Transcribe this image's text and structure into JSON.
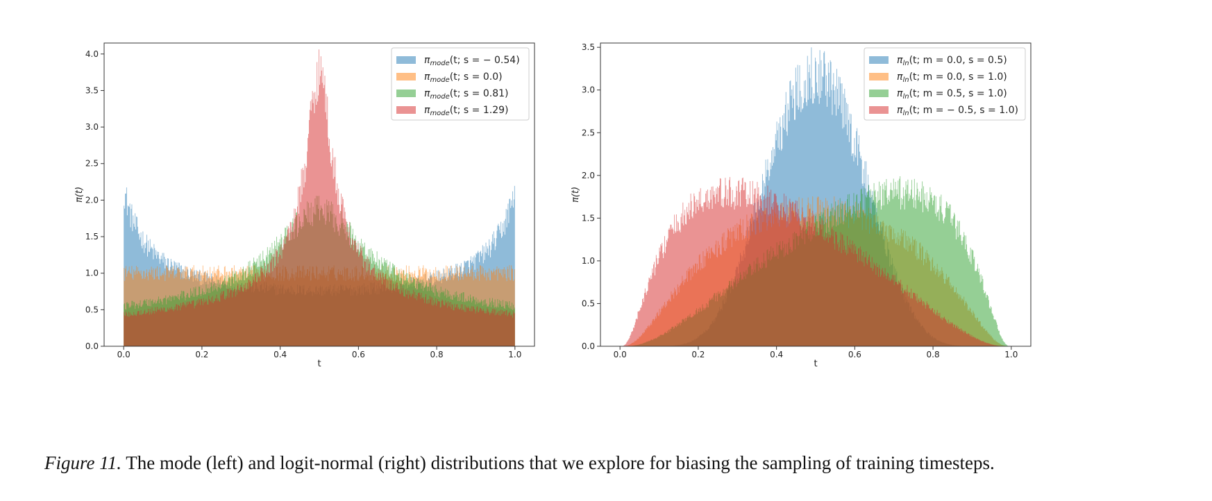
{
  "caption": {
    "label": "Figure 11.",
    "text": " The mode (left) and logit-normal (right) distributions that we explore for biasing the sampling of training timesteps."
  },
  "chart_data": [
    {
      "type": "histogram",
      "title": "",
      "xlabel": "t",
      "ylabel": "π(t)",
      "xlim": [
        -0.05,
        1.05
      ],
      "ylim": [
        0,
        4.15
      ],
      "xticks": [
        "0.0",
        "0.2",
        "0.4",
        "0.6",
        "0.8",
        "1.0"
      ],
      "yticks": [
        "0.0",
        "0.5",
        "1.0",
        "1.5",
        "2.0",
        "2.5",
        "3.0",
        "3.5",
        "4.0"
      ],
      "legend_position": "top-right",
      "distribution": "mode",
      "series": [
        {
          "name": "π_mode(t; s = −0.54)",
          "legend_main": "π",
          "legend_sub": "mode",
          "legend_args": "(t; s = − 0.54)",
          "s": -0.54,
          "color": "#1f77b4"
        },
        {
          "name": "π_mode(t; s = 0.0)",
          "legend_main": "π",
          "legend_sub": "mode",
          "legend_args": "(t; s = 0.0)",
          "s": 0.0,
          "color": "#ff7f0e"
        },
        {
          "name": "π_mode(t; s = 0.81)",
          "legend_main": "π",
          "legend_sub": "mode",
          "legend_args": "(t; s = 0.81)",
          "s": 0.81,
          "color": "#2ca02c"
        },
        {
          "name": "π_mode(t; s = 1.29)",
          "legend_main": "π",
          "legend_sub": "mode",
          "legend_args": "(t; s = 1.29)",
          "s": 1.29,
          "color": "#d62728"
        }
      ]
    },
    {
      "type": "histogram",
      "title": "",
      "xlabel": "t",
      "ylabel": "π(t)",
      "xlim": [
        -0.05,
        1.05
      ],
      "ylim": [
        0,
        3.55
      ],
      "xticks": [
        "0.0",
        "0.2",
        "0.4",
        "0.6",
        "0.8",
        "1.0"
      ],
      "yticks": [
        "0.0",
        "0.5",
        "1.0",
        "1.5",
        "2.0",
        "2.5",
        "3.0",
        "3.5"
      ],
      "legend_position": "top-right",
      "distribution": "logit-normal",
      "series": [
        {
          "name": "π_ln(t; m = 0.0, s = 0.5)",
          "legend_main": "π",
          "legend_sub": "ln",
          "legend_args": "(t; m = 0.0, s = 0.5)",
          "m": 0.0,
          "s": 0.5,
          "color": "#1f77b4"
        },
        {
          "name": "π_ln(t; m = 0.0, s = 1.0)",
          "legend_main": "π",
          "legend_sub": "ln",
          "legend_args": "(t; m = 0.0, s = 1.0)",
          "m": 0.0,
          "s": 1.0,
          "color": "#ff7f0e"
        },
        {
          "name": "π_ln(t; m = 0.5, s = 1.0)",
          "legend_main": "π",
          "legend_sub": "ln",
          "legend_args": "(t; m = 0.5, s = 1.0)",
          "m": 0.5,
          "s": 1.0,
          "color": "#2ca02c"
        },
        {
          "name": "π_ln(t; m = −0.5, s = 1.0)",
          "legend_main": "π",
          "legend_sub": "ln",
          "legend_args": "(t; m = − 0.5, s = 1.0)",
          "m": -0.5,
          "s": 1.0,
          "color": "#d62728"
        }
      ]
    }
  ]
}
